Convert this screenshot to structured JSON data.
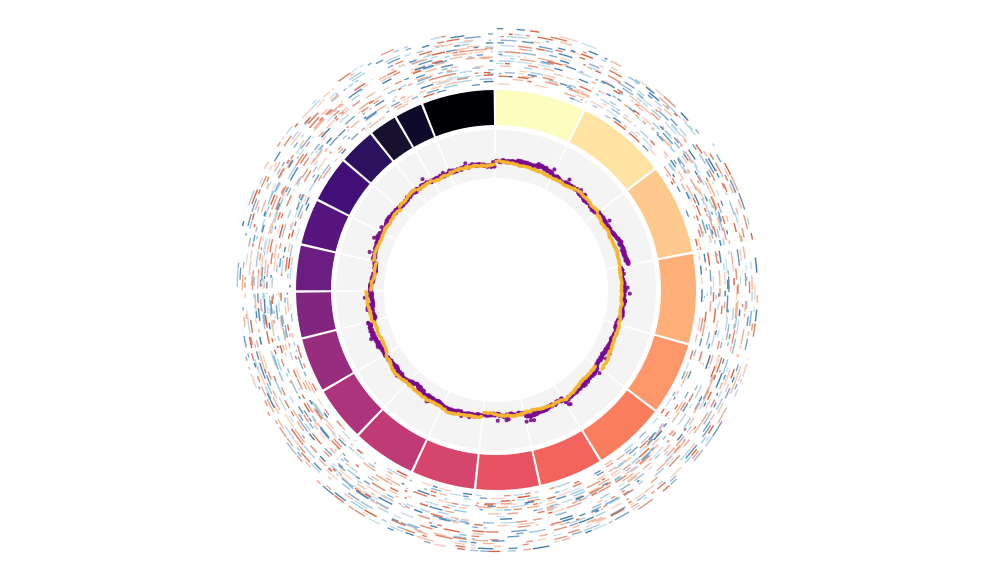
{
  "chart_data": {
    "type": "circos",
    "title": "",
    "legend": "none",
    "segment_palette": [
      "#fcfdbf",
      "#fee3a2",
      "#fec98d",
      "#feb078",
      "#fd9668",
      "#fa7d5e",
      "#f3655c",
      "#e85362",
      "#d6456c",
      "#c03a76",
      "#ac337c",
      "#982d80",
      "#812581",
      "#6b1d81",
      "#57157e",
      "#410f75",
      "#2c115f",
      "#17102f",
      "#0e0a2a",
      "#000004"
    ],
    "segments": [
      {
        "id": "s1",
        "length": 10
      },
      {
        "id": "s2",
        "length": 10
      },
      {
        "id": "s3",
        "length": 10
      },
      {
        "id": "s4",
        "length": 10
      },
      {
        "id": "s5",
        "length": 8
      },
      {
        "id": "s6",
        "length": 8
      },
      {
        "id": "s7",
        "length": 7
      },
      {
        "id": "s8",
        "length": 7
      },
      {
        "id": "s9",
        "length": 7
      },
      {
        "id": "s10",
        "length": 7
      },
      {
        "id": "s11",
        "length": 6
      },
      {
        "id": "s12",
        "length": 6
      },
      {
        "id": "s13",
        "length": 5
      },
      {
        "id": "s14",
        "length": 5
      },
      {
        "id": "s15",
        "length": 5
      },
      {
        "id": "s16",
        "length": 5
      },
      {
        "id": "s17",
        "length": 4
      },
      {
        "id": "s18",
        "length": 3
      },
      {
        "id": "s19",
        "length": 3
      },
      {
        "id": "s20",
        "length": 8
      }
    ],
    "line_track": {
      "series": [
        {
          "color": "#7b0c8f",
          "style": "points"
        },
        {
          "color": "#f5b52e",
          "style": "points"
        }
      ],
      "ylim": [
        0,
        1
      ]
    },
    "heat_tracks": {
      "track_count": 6,
      "colors": [
        "#d6542f",
        "#f0a788",
        "#8fc0db",
        "#2f6fa8"
      ]
    }
  }
}
